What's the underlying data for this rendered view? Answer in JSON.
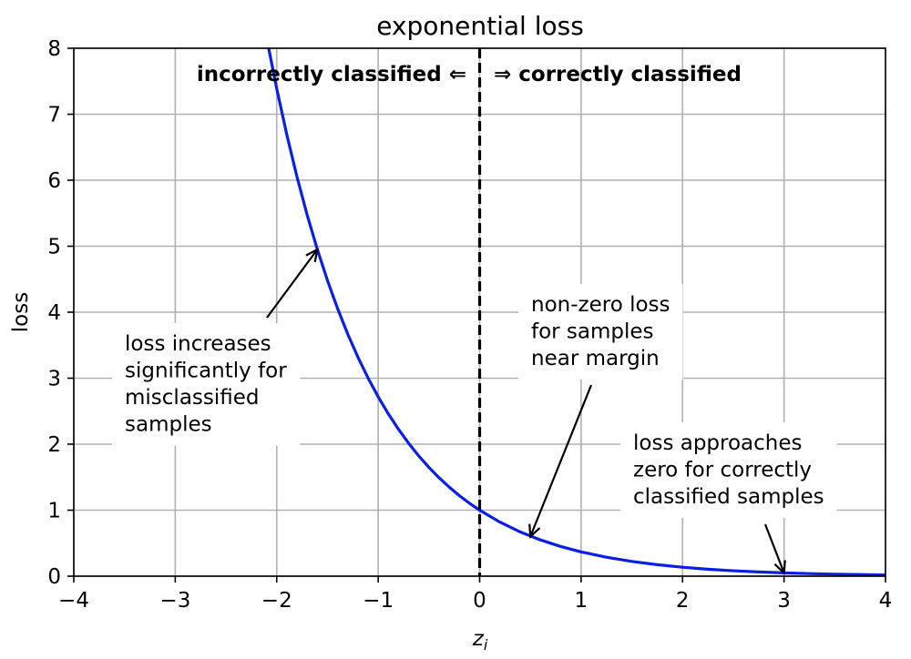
{
  "chart_data": {
    "type": "line",
    "title": "exponential loss",
    "xlabel": "z_i",
    "xlabel_main": "z",
    "xlabel_sub": "i",
    "ylabel": "loss",
    "xlim": [
      -4,
      4
    ],
    "ylim": [
      0,
      8
    ],
    "xticks": [
      -4,
      -3,
      -2,
      -1,
      0,
      1,
      2,
      3,
      4
    ],
    "xtick_labels": [
      "−4",
      "−3",
      "−2",
      "−1",
      "0",
      "1",
      "2",
      "3",
      "4"
    ],
    "yticks": [
      0,
      1,
      2,
      3,
      4,
      5,
      6,
      7,
      8
    ],
    "ytick_labels": [
      "0",
      "1",
      "2",
      "3",
      "4",
      "5",
      "6",
      "7",
      "8"
    ],
    "grid": true,
    "series": [
      {
        "function": "exp(-z)",
        "color": "#0a1fe6",
        "x": [
          -2.0794,
          -2.0,
          -1.9,
          -1.8,
          -1.7,
          -1.6,
          -1.5,
          -1.4,
          -1.3,
          -1.2,
          -1.1,
          -1.0,
          -0.9,
          -0.8,
          -0.7,
          -0.6,
          -0.5,
          -0.4,
          -0.3,
          -0.2,
          -0.1,
          0.0,
          0.2,
          0.4,
          0.6,
          0.8,
          1.0,
          1.25,
          1.5,
          1.75,
          2.0,
          2.25,
          2.5,
          2.75,
          3.0,
          3.25,
          3.5,
          3.75,
          4.0
        ],
        "y": [
          8.0,
          7.389,
          6.686,
          6.05,
          5.474,
          4.953,
          4.482,
          4.055,
          3.669,
          3.32,
          3.004,
          2.718,
          2.46,
          2.226,
          2.014,
          1.822,
          1.649,
          1.492,
          1.35,
          1.221,
          1.105,
          1.0,
          0.819,
          0.67,
          0.549,
          0.449,
          0.368,
          0.287,
          0.223,
          0.174,
          0.135,
          0.105,
          0.082,
          0.064,
          0.05,
          0.039,
          0.03,
          0.024,
          0.018
        ]
      }
    ],
    "vline": {
      "x": 0,
      "style": "dashed",
      "color": "#000000"
    },
    "region_labels": {
      "left": "incorrectly classified ⇐",
      "right": "⇒ correctly classified"
    },
    "annotations": [
      {
        "lines": [
          "loss increases",
          "significantly for",
          "misclassified",
          "samples"
        ],
        "point": [
          -1.6,
          4.95
        ]
      },
      {
        "lines": [
          "non-zero loss",
          "for samples",
          "near margin"
        ],
        "point": [
          0.5,
          0.6
        ]
      },
      {
        "lines": [
          "loss approaches",
          "zero for correctly",
          "classified samples"
        ],
        "point": [
          3.0,
          0.05
        ]
      }
    ]
  }
}
